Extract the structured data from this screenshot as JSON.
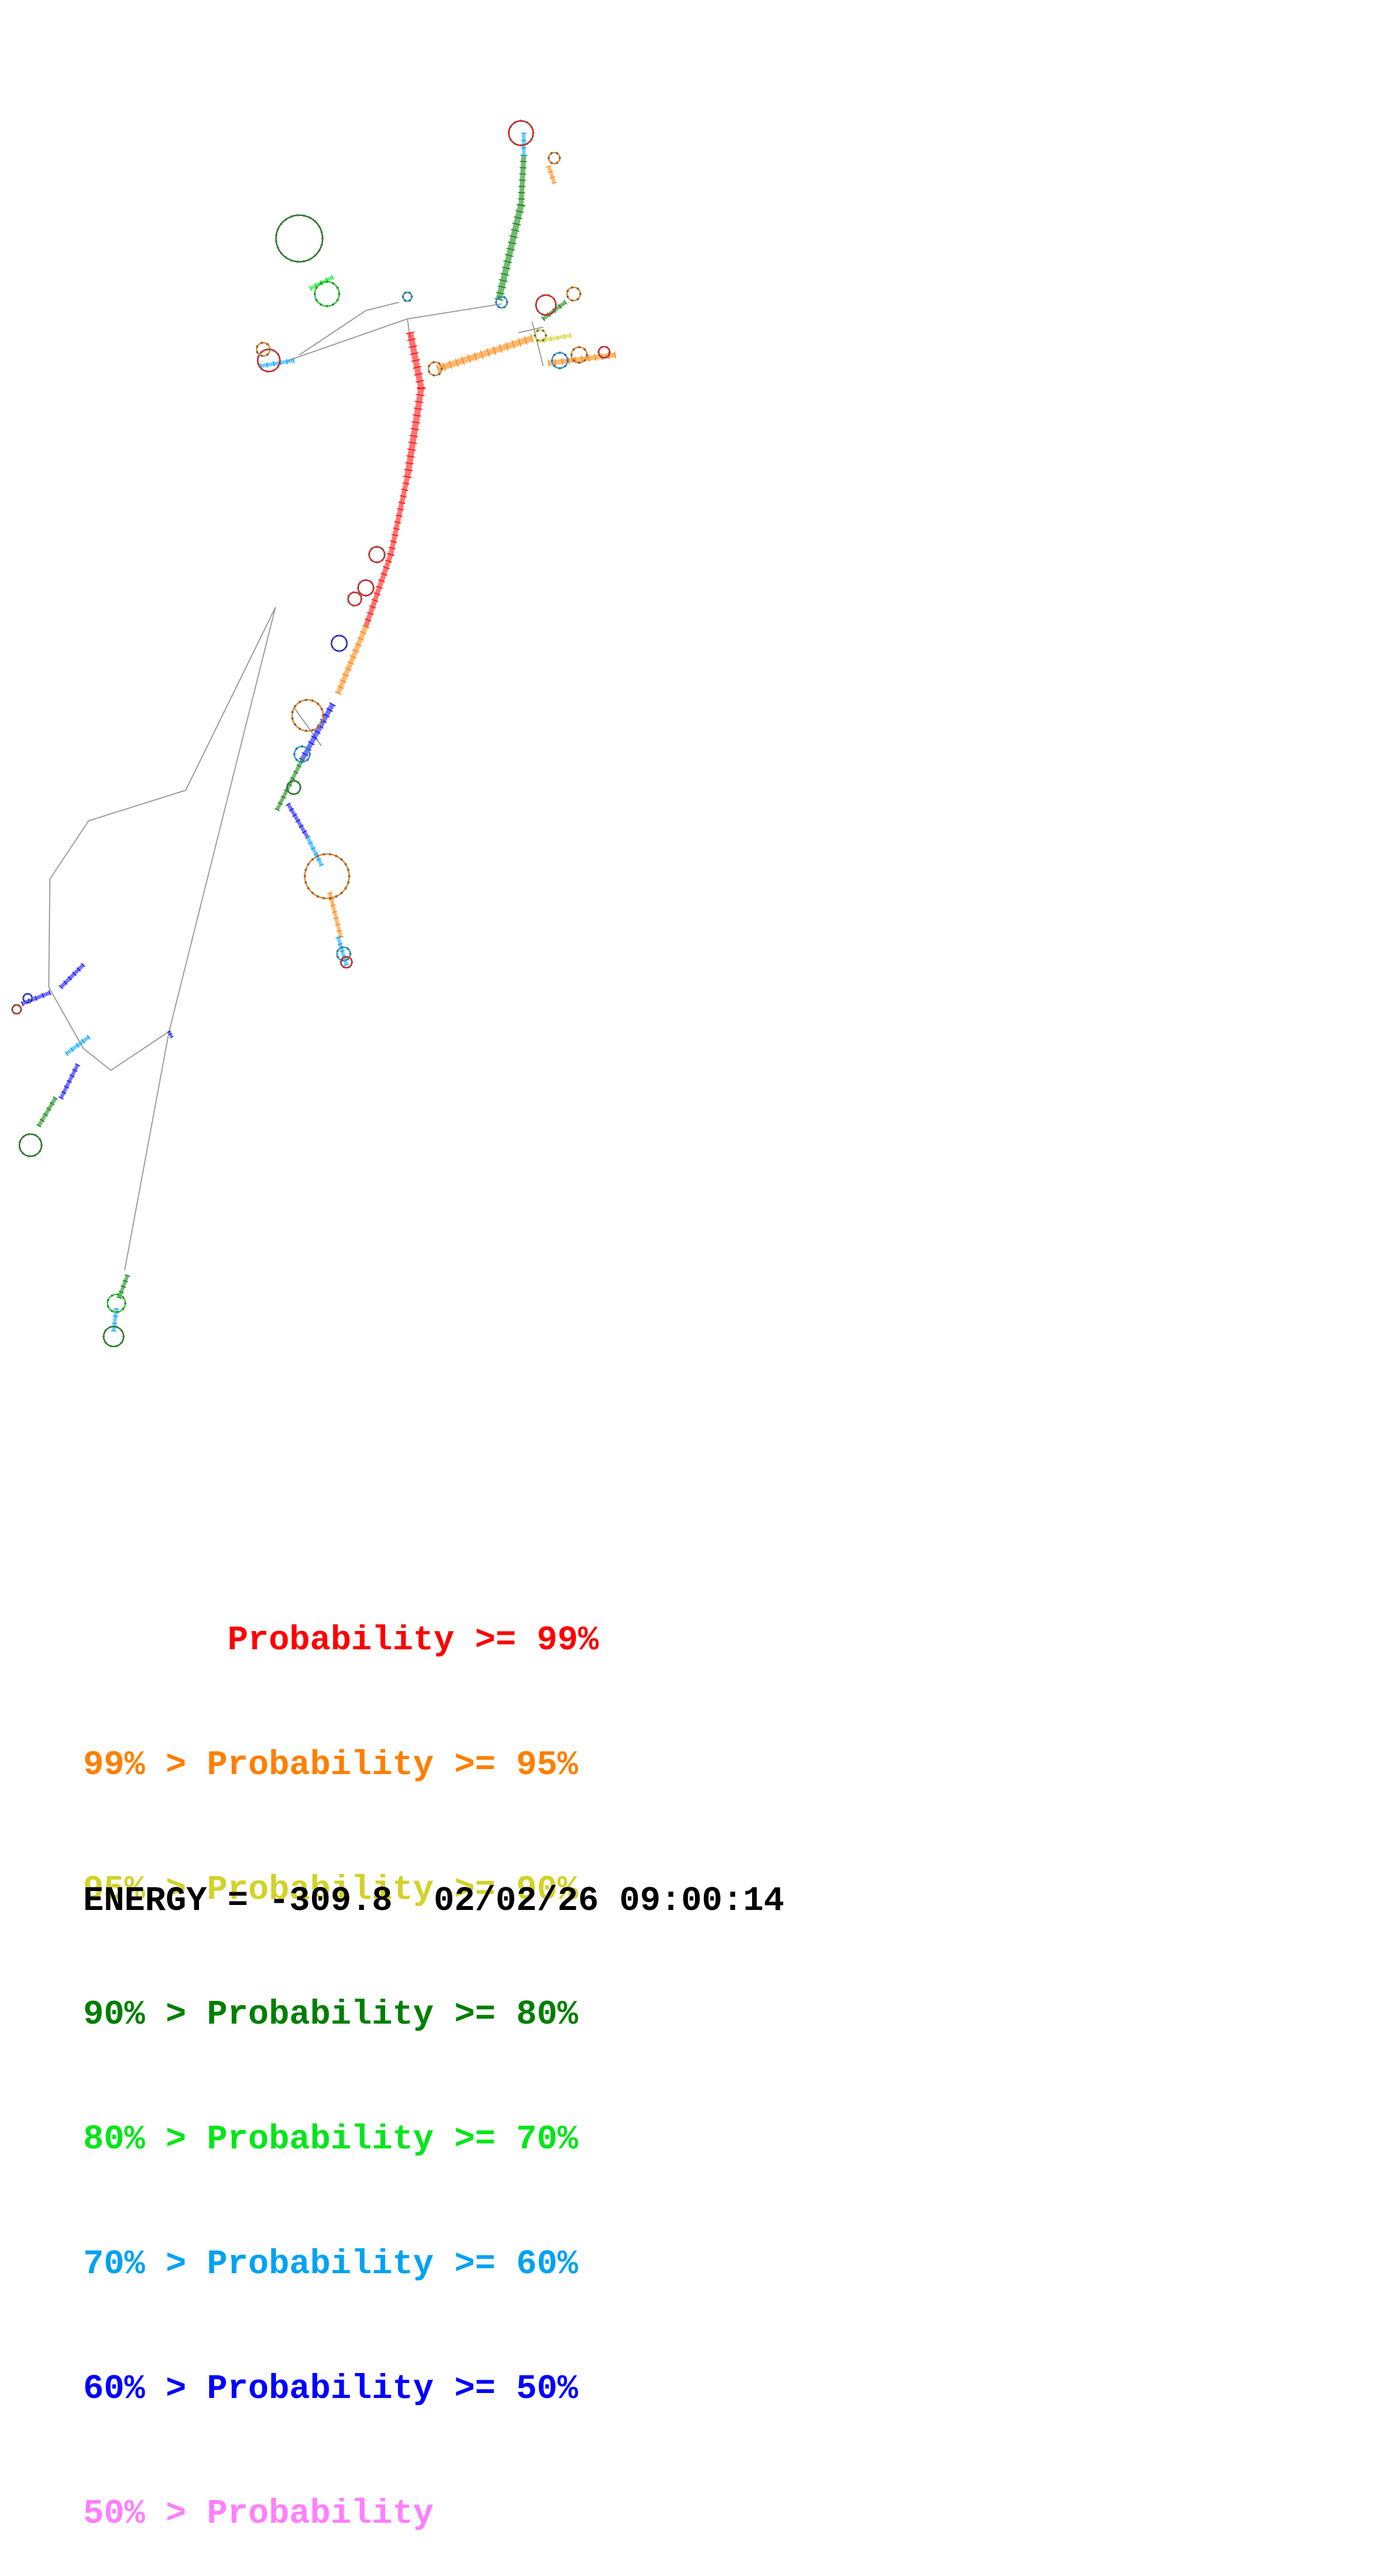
{
  "legend": [
    {
      "text": "       Probability >= 99%",
      "color": "#ff0000"
    },
    {
      "text": "99% > Probability >= 95%",
      "color": "#ff7f00"
    },
    {
      "text": "95% > Probability >= 90%",
      "color": "#d2d22a"
    },
    {
      "text": "90% > Probability >= 80%",
      "color": "#007f00"
    },
    {
      "text": "80% > Probability >= 70%",
      "color": "#00e619"
    },
    {
      "text": "70% > Probability >= 60%",
      "color": "#00a2f2"
    },
    {
      "text": "60% > Probability >= 50%",
      "color": "#0000ff"
    },
    {
      "text": "50% > Probability",
      "color": "#ff7fff"
    }
  ],
  "footer": {
    "energy_label": "ENERGY = -309.8  02/02/26 09:00:14"
  },
  "colors": {
    "backbone": "#9a9a9a",
    "nucleotide": "#6a6a6a"
  }
}
